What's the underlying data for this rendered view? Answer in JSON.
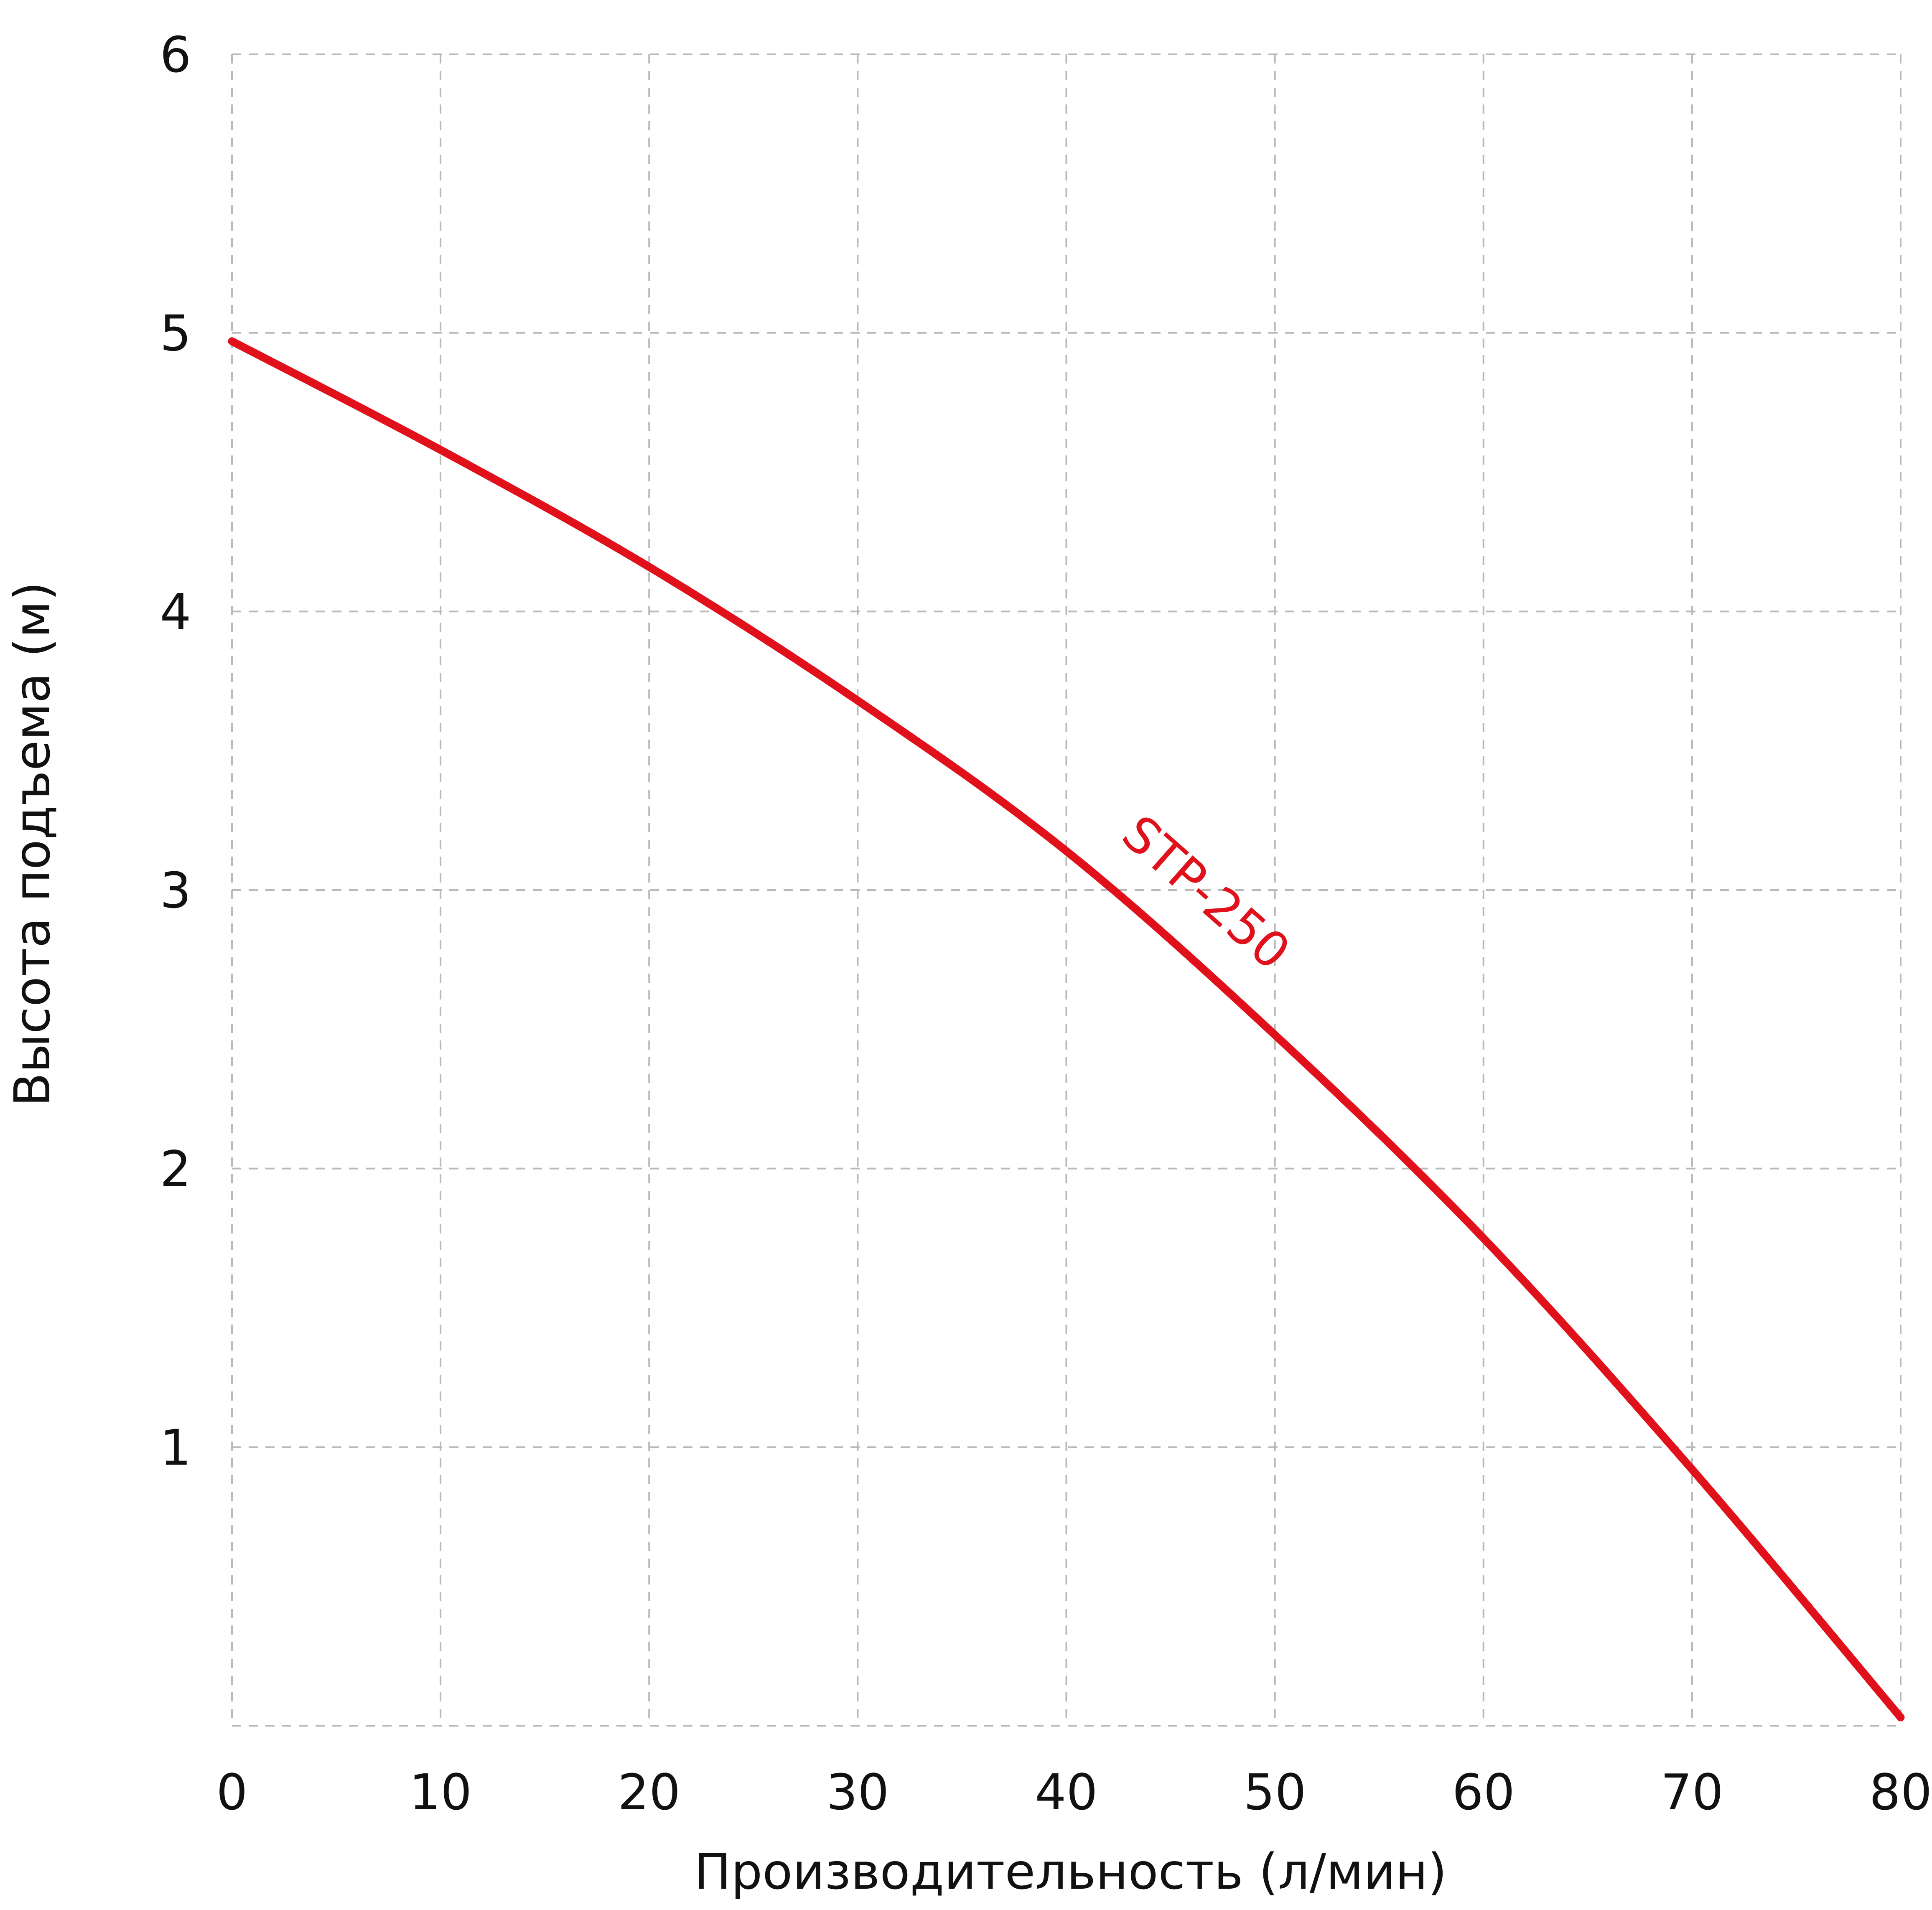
{
  "chart_data": {
    "type": "line",
    "title": "",
    "xlabel": "Производительность (л/мин)",
    "ylabel": "Высота подъема (м)",
    "xlim": [
      0,
      80
    ],
    "ylim": [
      0,
      6
    ],
    "x_ticks": [
      0,
      10,
      20,
      30,
      40,
      50,
      60,
      70,
      80
    ],
    "y_ticks": [
      1,
      2,
      3,
      4,
      5,
      6
    ],
    "grid": true,
    "series": [
      {
        "name": "STP-250",
        "color": "#e0111b",
        "x": [
          0,
          10,
          20,
          30,
          40,
          50,
          60,
          70,
          80
        ],
        "y": [
          4.97,
          4.58,
          4.16,
          3.68,
          3.14,
          2.48,
          1.75,
          0.92,
          0.03
        ]
      }
    ]
  }
}
